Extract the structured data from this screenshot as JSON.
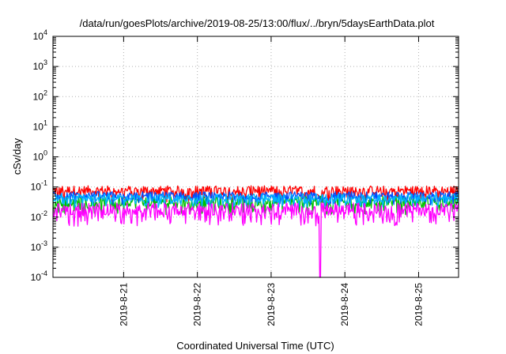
{
  "chart_data": {
    "type": "line",
    "title": "/data/run/goesPlots/archive/2019-08-25/13:00/flux/../bryn/5daysEarthData.plot",
    "xlabel": "Coordinated Universal Time (UTC)",
    "ylabel": "cSv/day",
    "y_scale": "log",
    "ylim": [
      0.0001,
      10000
    ],
    "y_ticks": [
      {
        "base": "10",
        "exp": "-4"
      },
      {
        "base": "10",
        "exp": "-3"
      },
      {
        "base": "10",
        "exp": "-2"
      },
      {
        "base": "10",
        "exp": "-1"
      },
      {
        "base": "10",
        "exp": "0"
      },
      {
        "base": "10",
        "exp": "1"
      },
      {
        "base": "10",
        "exp": "2"
      },
      {
        "base": "10",
        "exp": "3"
      },
      {
        "base": "10",
        "exp": "4"
      }
    ],
    "xlim": [
      "2019-08-20T01:00",
      "2019-08-25T13:00"
    ],
    "x_ticks": [
      "2019-8-21",
      "2019-8-22",
      "2019-8-23",
      "2019-8-24",
      "2019-8-25"
    ],
    "x_tick_dates": [
      "2019-08-21",
      "2019-08-22",
      "2019-08-23",
      "2019-08-24",
      "2019-08-25"
    ],
    "grid": true,
    "series": [
      {
        "color": "#ff0000",
        "level_range": [
          0.03,
          0.11
        ]
      },
      {
        "color": "#00c000",
        "level_range": [
          0.012,
          0.05
        ]
      },
      {
        "color": "#0050ff",
        "level_range": [
          0.025,
          0.07
        ]
      },
      {
        "color": "#00b4ff",
        "level_range": [
          0.02,
          0.06
        ]
      },
      {
        "color": "#ff00ff",
        "level_range": [
          0.005,
          0.03
        ]
      }
    ],
    "annotations": [
      {
        "series_color": "#ff00ff",
        "event": "dropout",
        "date": "2019-08-23T16:00",
        "value": 0.0001
      }
    ]
  }
}
